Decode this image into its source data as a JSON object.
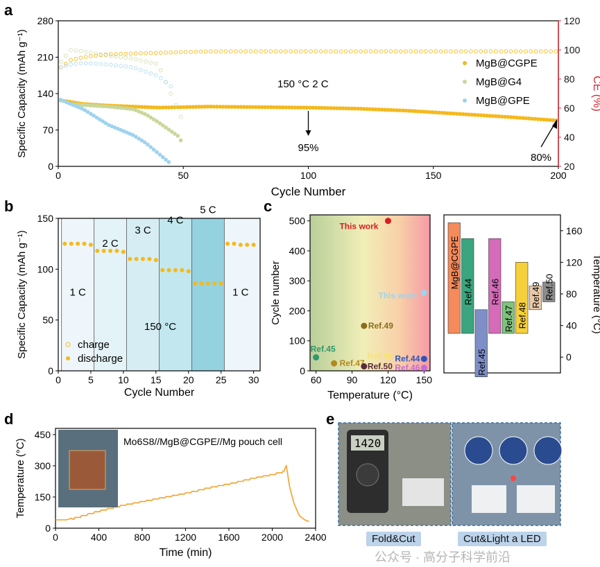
{
  "panel_letters": [
    "a",
    "b",
    "c",
    "d",
    "e"
  ],
  "colors": {
    "cgpe": "#f5b91c",
    "g4": "#c9d79c",
    "gpe": "#9fd3ee",
    "ce_axis": "#d4242c",
    "pouch_line": "#f1a12a"
  },
  "chart_data": [
    {
      "id": "a",
      "type": "scatter",
      "xlabel": "Cycle Number",
      "ylabel": "Specific Capacity (mAh g⁻¹)",
      "y2label": "CE (%)",
      "xlim": [
        0,
        200
      ],
      "ylim": [
        0,
        280
      ],
      "y2lim": [
        20,
        120
      ],
      "xticks": [
        0,
        50,
        100,
        150,
        200
      ],
      "yticks": [
        0,
        70,
        140,
        210,
        280
      ],
      "y2ticks": [
        20,
        40,
        60,
        80,
        100,
        120
      ],
      "annotations": [
        "150 °C 2 C",
        "95%",
        "80%"
      ],
      "legend": [
        "MgB@CGPE",
        "MgB@G4",
        "MgB@GPE"
      ],
      "series": [
        {
          "name": "MgB@CGPE",
          "kind": "capacity",
          "x": [
            1,
            5,
            10,
            20,
            30,
            40,
            60,
            80,
            100,
            120,
            140,
            160,
            180,
            200
          ],
          "y": [
            127,
            124,
            120,
            117,
            115,
            113,
            115,
            114,
            113,
            111,
            107,
            101,
            95,
            88
          ]
        },
        {
          "name": "MgB@CGPE",
          "kind": "CE",
          "x": [
            1,
            5,
            10,
            20,
            40,
            60,
            100,
            150,
            200
          ],
          "y": [
            88,
            93,
            95,
            97,
            98,
            99,
            99,
            99,
            99
          ]
        },
        {
          "name": "MgB@G4",
          "kind": "capacity",
          "x": [
            1,
            5,
            10,
            20,
            30,
            35,
            40,
            45,
            48,
            50
          ],
          "y": [
            128,
            120,
            118,
            115,
            110,
            100,
            85,
            68,
            58,
            42
          ]
        },
        {
          "name": "MgB@G4",
          "kind": "CE",
          "x": [
            1,
            5,
            10,
            20,
            30,
            40,
            45,
            50
          ],
          "y": [
            92,
            100,
            99,
            96,
            94,
            90,
            70,
            50
          ]
        },
        {
          "name": "MgB@GPE",
          "kind": "capacity",
          "x": [
            1,
            5,
            10,
            15,
            20,
            25,
            30,
            35,
            40,
            45
          ],
          "y": [
            128,
            120,
            110,
            95,
            80,
            70,
            60,
            45,
            25,
            5
          ]
        },
        {
          "name": "MgB@GPE",
          "kind": "CE",
          "x": [
            1,
            5,
            10,
            20,
            30,
            40,
            45
          ],
          "y": [
            88,
            90,
            91,
            90,
            88,
            82,
            75
          ]
        }
      ]
    },
    {
      "id": "b",
      "type": "scatter",
      "xlabel": "Cycle Number",
      "ylabel": "Specific Capacity (mAh g⁻¹)",
      "xlim": [
        0,
        31
      ],
      "ylim": [
        0,
        150
      ],
      "xticks": [
        0,
        5,
        10,
        15,
        20,
        25,
        30
      ],
      "yticks": [
        0,
        50,
        100,
        150
      ],
      "rate_labels": [
        "1 C",
        "2 C",
        "3 C",
        "4 C",
        "5 C",
        "1 C"
      ],
      "temperature_label": "150 °C",
      "legend": [
        "charge",
        "discharge"
      ],
      "series": [
        {
          "name": "charge",
          "x": [
            1,
            2,
            3,
            4,
            5,
            6,
            7,
            8,
            9,
            10,
            11,
            12,
            13,
            14,
            15,
            16,
            17,
            18,
            19,
            20,
            21,
            22,
            23,
            24,
            25,
            26,
            27,
            28,
            29,
            30
          ],
          "y": [
            125,
            125,
            125,
            125,
            124,
            118,
            118,
            118,
            118,
            117,
            110,
            110,
            110,
            110,
            109,
            99,
            99,
            99,
            99,
            98,
            86,
            86,
            86,
            86,
            86,
            125,
            125,
            124,
            124,
            124
          ]
        },
        {
          "name": "discharge",
          "x": [
            1,
            2,
            3,
            4,
            5,
            6,
            7,
            8,
            9,
            10,
            11,
            12,
            13,
            14,
            15,
            16,
            17,
            18,
            19,
            20,
            21,
            22,
            23,
            24,
            25,
            26,
            27,
            28,
            29,
            30
          ],
          "y": [
            125,
            125,
            125,
            125,
            124,
            118,
            118,
            118,
            118,
            117,
            110,
            110,
            110,
            110,
            109,
            99,
            99,
            99,
            99,
            98,
            86,
            86,
            86,
            86,
            86,
            125,
            125,
            124,
            124,
            124
          ]
        }
      ]
    },
    {
      "id": "c-left",
      "type": "scatter",
      "xlabel": "Temperature (°C)",
      "ylabel": "Cycle number",
      "xlim": [
        55,
        155
      ],
      "ylim": [
        0,
        520
      ],
      "xticks": [
        60,
        90,
        120,
        150
      ],
      "yticks": [
        0,
        100,
        200,
        300,
        400,
        500
      ],
      "points": [
        {
          "label": "This work",
          "x": 120,
          "y": 500,
          "color": "#d91c23"
        },
        {
          "label": "This work",
          "x": 150,
          "y": 260,
          "color": "#9fd3ee"
        },
        {
          "label": "Ref.49",
          "x": 100,
          "y": 150,
          "color": "#8a6d1c"
        },
        {
          "label": "Ref.45",
          "x": 60,
          "y": 45,
          "color": "#2f9a6a"
        },
        {
          "label": "Ref.48",
          "x": 120,
          "y": 50,
          "color": "#f5e27a"
        },
        {
          "label": "Ref.44",
          "x": 150,
          "y": 40,
          "color": "#2c56b8"
        },
        {
          "label": "Ref.47",
          "x": 75,
          "y": 25,
          "color": "#b5871c"
        },
        {
          "label": "Ref.50",
          "x": 100,
          "y": 15,
          "color": "#5a2c3a"
        },
        {
          "label": "Ref.46",
          "x": 150,
          "y": 10,
          "color": "#c66cd8"
        }
      ]
    },
    {
      "id": "c-right",
      "type": "bar",
      "ylabel": "Temperature (°C)",
      "ylim": [
        -20,
        180
      ],
      "yticks": [
        0,
        40,
        80,
        120,
        160
      ],
      "categories": [
        "MgB@CGPE",
        "Ref.44",
        "Ref.45",
        "Ref.46",
        "Ref.47",
        "Ref.48",
        "Ref.49",
        "Ref.50"
      ],
      "ranges": [
        [
          30,
          170
        ],
        [
          30,
          150
        ],
        [
          -25,
          60
        ],
        [
          30,
          150
        ],
        [
          30,
          70
        ],
        [
          30,
          120
        ],
        [
          60,
          90
        ],
        [
          70,
          95
        ]
      ],
      "colors": [
        "#f58a5a",
        "#3aa57e",
        "#7e8fc8",
        "#d56bb9",
        "#7ec27e",
        "#f5d03a",
        "#e8c9a8",
        "#8c8c8c"
      ]
    },
    {
      "id": "d",
      "type": "line",
      "xlabel": "Time (min)",
      "ylabel": "Temperature (°C)",
      "xlim": [
        0,
        2400
      ],
      "ylim": [
        0,
        480
      ],
      "xticks": [
        0,
        400,
        800,
        1200,
        1600,
        2000,
        2400
      ],
      "yticks": [
        0,
        150,
        300,
        450
      ],
      "legend_text": "Mo6S8//MgB@CGPE//Mg pouch cell",
      "x": [
        0,
        100,
        200,
        400,
        600,
        800,
        1000,
        1200,
        1400,
        1600,
        1800,
        2000,
        2100,
        2130,
        2160,
        2200,
        2250,
        2300,
        2340
      ],
      "y": [
        40,
        40,
        55,
        85,
        110,
        130,
        150,
        170,
        195,
        215,
        240,
        260,
        275,
        300,
        200,
        120,
        60,
        40,
        32
      ]
    }
  ],
  "panel_e": {
    "labels": [
      "Fold&Cut",
      "Cut&Light a LED"
    ],
    "meter_reading": "1420"
  },
  "watermark": "公众号 · 高分子科学前沿"
}
